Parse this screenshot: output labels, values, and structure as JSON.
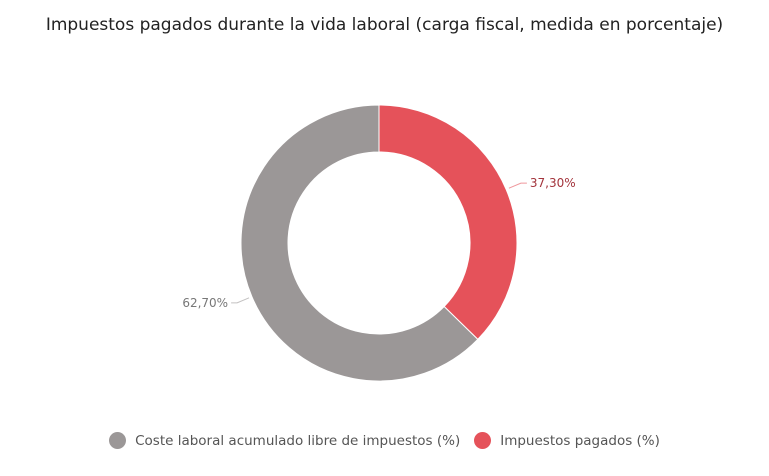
{
  "chart_data": {
    "type": "pie",
    "variant": "donut",
    "title": "Impuestos pagados durante la vida laboral (carga fiscal, medida en porcentaje)",
    "slices": [
      {
        "name": "Impuestos pagados (%)",
        "value": 37.3,
        "label": "37,30%",
        "color": "#e5525a",
        "label_color": "#a3343c"
      },
      {
        "name": "Coste laboral acumulado libre de impuestos (%)",
        "value": 62.7,
        "label": "62,70%",
        "color": "#9b9797",
        "label_color": "#777777"
      }
    ],
    "legend": {
      "placement": "bottom",
      "items": [
        {
          "label": "Coste laboral acumulado libre de impuestos (%)",
          "color": "#9b9797"
        },
        {
          "label": "Impuestos pagados (%)",
          "color": "#e5525a"
        }
      ]
    }
  }
}
